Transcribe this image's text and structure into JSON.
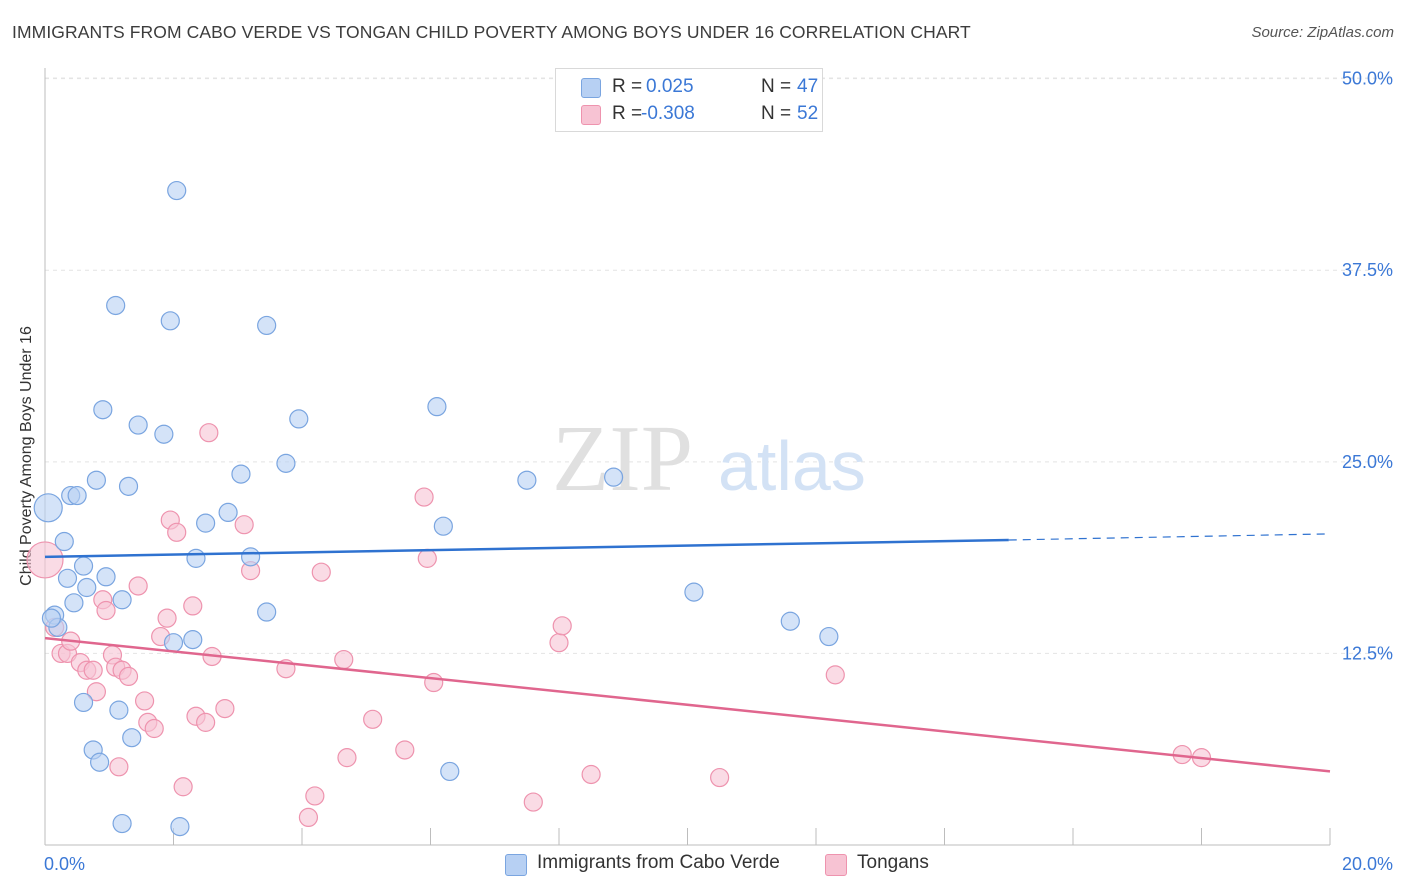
{
  "header": {
    "title": "IMMIGRANTS FROM CABO VERDE VS TONGAN CHILD POVERTY AMONG BOYS UNDER 16 CORRELATION CHART",
    "source": "Source: ZipAtlas.com"
  },
  "watermark": {
    "zip": "ZIP",
    "atlas": "atlas"
  },
  "legend": {
    "rows": [
      {
        "r_label": "R =",
        "r_value": "0.025",
        "n_label": "N =",
        "n_value": "47"
      },
      {
        "r_label": "R =",
        "r_value": "-0.308",
        "n_label": "N =",
        "n_value": "52"
      }
    ]
  },
  "bottom_legend": [
    {
      "label": "Immigrants from Cabo Verde"
    },
    {
      "label": "Tongans"
    }
  ],
  "colors": {
    "blue_fill": "#b7d0f3",
    "blue_stroke": "#7aa5e0",
    "blue_line": "#2f72d0",
    "pink_fill": "#f7c3d3",
    "pink_stroke": "#ee93ae",
    "pink_line": "#e0668e",
    "axis_label": "#3b78d6",
    "grid": "#e4e4e4"
  },
  "chart_data": {
    "type": "scatter",
    "title": "IMMIGRANTS FROM CABO VERDE VS TONGAN CHILD POVERTY AMONG BOYS UNDER 16 CORRELATION CHART",
    "xlabel": "",
    "ylabel": "Child Poverty Among Boys Under 16",
    "xlim": [
      0,
      20
    ],
    "ylim": [
      0,
      52
    ],
    "x_tick_labels": [
      {
        "value": 0,
        "label": "0.0%"
      },
      {
        "value": 20,
        "label": "20.0%"
      }
    ],
    "y_ticks": [
      {
        "value": 12.5,
        "label": "12.5%"
      },
      {
        "value": 25,
        "label": "25.0%"
      },
      {
        "value": 37.5,
        "label": "37.5%"
      },
      {
        "value": 50,
        "label": "50.0%"
      }
    ],
    "x_minor_ticks": [
      2,
      4,
      6,
      8,
      10,
      12,
      14,
      16,
      18,
      20
    ],
    "grid": true,
    "series": [
      {
        "name": "Immigrants from Cabo Verde",
        "color": "blue",
        "r": 0.025,
        "n": 47,
        "trend": {
          "x0": 0,
          "y0": 18.8,
          "x1": 15,
          "y1": 19.9,
          "dash_to_x": 20,
          "dash_to_y": 20.3
        },
        "points": [
          [
            0.05,
            22.0,
            14
          ],
          [
            0.15,
            15.0,
            9
          ],
          [
            0.2,
            14.2,
            9
          ],
          [
            0.3,
            19.8,
            9
          ],
          [
            0.35,
            17.4,
            9
          ],
          [
            0.4,
            22.8,
            9
          ],
          [
            0.45,
            15.8,
            9
          ],
          [
            0.5,
            22.8,
            9
          ],
          [
            0.6,
            18.2,
            9
          ],
          [
            0.65,
            16.8,
            9
          ],
          [
            0.8,
            23.8,
            9
          ],
          [
            0.9,
            28.4,
            9
          ],
          [
            0.95,
            17.5,
            9
          ],
          [
            1.1,
            35.2,
            9
          ],
          [
            1.2,
            16.0,
            9
          ],
          [
            1.3,
            23.4,
            9
          ],
          [
            1.45,
            27.4,
            9
          ],
          [
            1.85,
            26.8,
            9
          ],
          [
            1.95,
            34.2,
            9
          ],
          [
            2.05,
            42.7,
            9
          ],
          [
            2.3,
            13.4,
            9
          ],
          [
            2.35,
            18.7,
            9
          ],
          [
            2.5,
            21.0,
            9
          ],
          [
            2.85,
            21.7,
            9
          ],
          [
            3.05,
            24.2,
            9
          ],
          [
            3.2,
            18.8,
            9
          ],
          [
            3.45,
            15.2,
            9
          ],
          [
            3.45,
            33.9,
            9
          ],
          [
            3.75,
            24.9,
            9
          ],
          [
            3.95,
            27.8,
            9
          ],
          [
            2.0,
            13.2,
            9
          ],
          [
            0.6,
            9.3,
            9
          ],
          [
            0.75,
            6.2,
            9
          ],
          [
            0.85,
            5.4,
            9
          ],
          [
            1.15,
            8.8,
            9
          ],
          [
            1.35,
            7.0,
            9
          ],
          [
            1.2,
            1.4,
            9
          ],
          [
            2.1,
            1.2,
            9
          ],
          [
            6.1,
            28.6,
            9
          ],
          [
            6.2,
            20.8,
            9
          ],
          [
            6.3,
            4.8,
            9
          ],
          [
            7.5,
            23.8,
            9
          ],
          [
            8.85,
            24.0,
            9
          ],
          [
            10.1,
            16.5,
            9
          ],
          [
            11.6,
            14.6,
            9
          ],
          [
            12.2,
            13.6,
            9
          ],
          [
            0.1,
            14.8,
            9
          ]
        ]
      },
      {
        "name": "Tongans",
        "color": "pink",
        "r": -0.308,
        "n": 52,
        "trend": {
          "x0": 0,
          "y0": 13.5,
          "x1": 20,
          "y1": 4.8
        },
        "points": [
          [
            0.0,
            18.6,
            18
          ],
          [
            0.15,
            14.2,
            9
          ],
          [
            0.25,
            12.5,
            9
          ],
          [
            0.35,
            12.5,
            9
          ],
          [
            0.4,
            13.3,
            9
          ],
          [
            0.55,
            11.9,
            9
          ],
          [
            0.65,
            11.4,
            9
          ],
          [
            0.75,
            11.4,
            9
          ],
          [
            0.8,
            10.0,
            9
          ],
          [
            0.9,
            16.0,
            9
          ],
          [
            0.95,
            15.3,
            9
          ],
          [
            1.05,
            12.4,
            9
          ],
          [
            1.1,
            11.6,
            9
          ],
          [
            1.2,
            11.4,
            9
          ],
          [
            1.3,
            11.0,
            9
          ],
          [
            1.45,
            16.9,
            9
          ],
          [
            1.55,
            9.4,
            9
          ],
          [
            1.6,
            8.0,
            9
          ],
          [
            1.7,
            7.6,
            9
          ],
          [
            1.8,
            13.6,
            9
          ],
          [
            1.9,
            14.8,
            9
          ],
          [
            1.95,
            21.2,
            9
          ],
          [
            2.05,
            20.4,
            9
          ],
          [
            2.15,
            3.8,
            9
          ],
          [
            2.3,
            15.6,
            9
          ],
          [
            2.35,
            8.4,
            9
          ],
          [
            2.5,
            8.0,
            9
          ],
          [
            2.6,
            12.3,
            9
          ],
          [
            2.55,
            26.9,
            9
          ],
          [
            2.8,
            8.9,
            9
          ],
          [
            3.2,
            17.9,
            9
          ],
          [
            3.1,
            20.9,
            9
          ],
          [
            3.75,
            11.5,
            9
          ],
          [
            4.1,
            1.8,
            9
          ],
          [
            4.2,
            3.2,
            9
          ],
          [
            4.3,
            17.8,
            9
          ],
          [
            4.65,
            12.1,
            9
          ],
          [
            4.7,
            5.7,
            9
          ],
          [
            5.1,
            8.2,
            9
          ],
          [
            5.6,
            6.2,
            9
          ],
          [
            5.9,
            22.7,
            9
          ],
          [
            5.95,
            18.7,
            9
          ],
          [
            6.05,
            10.6,
            9
          ],
          [
            1.15,
            5.1,
            9
          ],
          [
            7.6,
            2.8,
            9
          ],
          [
            8.0,
            13.2,
            9
          ],
          [
            8.05,
            14.3,
            9
          ],
          [
            8.5,
            4.6,
            9
          ],
          [
            10.5,
            4.4,
            9
          ],
          [
            12.3,
            11.1,
            9
          ],
          [
            17.7,
            5.9,
            9
          ],
          [
            18.0,
            5.7,
            9
          ]
        ]
      }
    ]
  }
}
